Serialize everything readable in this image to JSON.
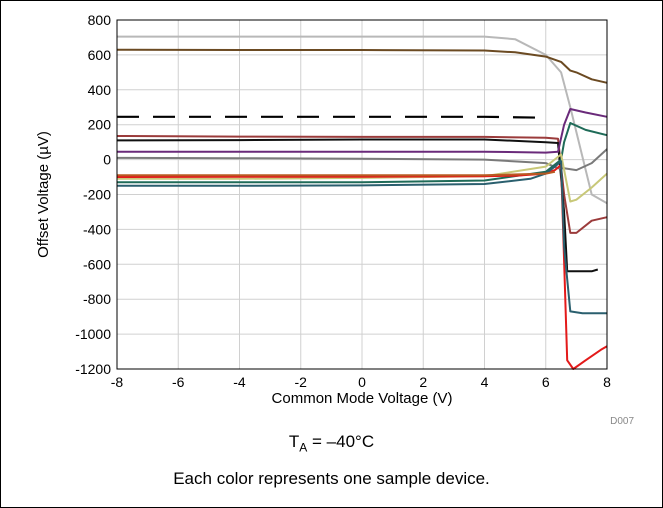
{
  "chart_data": {
    "type": "line",
    "title": "",
    "xlabel": "Common Mode Voltage (V)",
    "ylabel": "Offset Voltage (µV)",
    "xlim": [
      -8,
      8
    ],
    "ylim": [
      -1200,
      800
    ],
    "x_ticks": [
      "-8",
      "-6",
      "-4",
      "-2",
      "0",
      "2",
      "4",
      "6",
      "8"
    ],
    "y_ticks": [
      "800",
      "600",
      "400",
      "200",
      "0",
      "-200",
      "-400",
      "-600",
      "-800",
      "-1000",
      "-1200"
    ],
    "grid": true,
    "figure_id": "D007",
    "series": [
      {
        "color": "#b8b8b8",
        "style": "solid",
        "points": [
          [
            -8,
            705
          ],
          [
            -4,
            705
          ],
          [
            0,
            705
          ],
          [
            4,
            705
          ],
          [
            5,
            690
          ],
          [
            6,
            600
          ],
          [
            6.5,
            500
          ],
          [
            6.8,
            300
          ],
          [
            7.5,
            -200
          ],
          [
            8,
            -250
          ]
        ]
      },
      {
        "color": "#6b4a22",
        "style": "solid",
        "points": [
          [
            -8,
            630
          ],
          [
            -4,
            628
          ],
          [
            0,
            628
          ],
          [
            4,
            625
          ],
          [
            5,
            615
          ],
          [
            6,
            590
          ],
          [
            6.5,
            560
          ],
          [
            6.8,
            510
          ],
          [
            7,
            500
          ],
          [
            7.5,
            460
          ],
          [
            8,
            440
          ]
        ]
      },
      {
        "color": "#000000",
        "style": "dashed",
        "points": [
          [
            -8,
            245
          ],
          [
            -4,
            245
          ],
          [
            0,
            245
          ],
          [
            4,
            245
          ],
          [
            6,
            240
          ]
        ]
      },
      {
        "color": "#9b3b3b",
        "style": "solid",
        "points": [
          [
            -8,
            135
          ],
          [
            -4,
            132
          ],
          [
            0,
            130
          ],
          [
            4,
            130
          ],
          [
            6,
            125
          ],
          [
            6.4,
            120
          ],
          [
            6.6,
            -200
          ],
          [
            6.8,
            -420
          ],
          [
            7,
            -420
          ],
          [
            7.5,
            -350
          ],
          [
            8,
            -330
          ]
        ]
      },
      {
        "color": "#101010",
        "style": "solid",
        "points": [
          [
            -8,
            110
          ],
          [
            -4,
            112
          ],
          [
            0,
            115
          ],
          [
            4,
            115
          ],
          [
            6,
            100
          ],
          [
            6.4,
            95
          ],
          [
            6.6,
            -300
          ],
          [
            6.7,
            -640
          ],
          [
            7,
            -640
          ],
          [
            7.5,
            -640
          ],
          [
            7.7,
            -630
          ]
        ]
      },
      {
        "color": "#6a2a7a",
        "style": "solid",
        "points": [
          [
            -8,
            45
          ],
          [
            -4,
            45
          ],
          [
            0,
            45
          ],
          [
            4,
            45
          ],
          [
            6,
            40
          ],
          [
            6.4,
            45
          ],
          [
            6.6,
            200
          ],
          [
            6.8,
            290
          ],
          [
            7.3,
            270
          ],
          [
            8,
            245
          ]
        ]
      },
      {
        "color": "#7a7a7a",
        "style": "solid",
        "points": [
          [
            -8,
            10
          ],
          [
            -4,
            8
          ],
          [
            0,
            5
          ],
          [
            4,
            0
          ],
          [
            6,
            -20
          ],
          [
            6.4,
            -50
          ],
          [
            6.6,
            -50
          ],
          [
            7,
            -60
          ],
          [
            7.5,
            -20
          ],
          [
            8,
            60
          ]
        ]
      },
      {
        "color": "#1f6b58",
        "style": "solid",
        "points": [
          [
            -8,
            -130
          ],
          [
            -4,
            -130
          ],
          [
            0,
            -130
          ],
          [
            4,
            -120
          ],
          [
            6,
            -70
          ],
          [
            6.5,
            0
          ],
          [
            6.6,
            100
          ],
          [
            6.8,
            210
          ],
          [
            7.3,
            170
          ],
          [
            8,
            140
          ]
        ]
      },
      {
        "color": "#c8c878",
        "style": "solid",
        "points": [
          [
            -8,
            -110
          ],
          [
            -4,
            -110
          ],
          [
            0,
            -105
          ],
          [
            4,
            -95
          ],
          [
            6,
            -40
          ],
          [
            6.5,
            30
          ],
          [
            6.8,
            -240
          ],
          [
            7,
            -230
          ],
          [
            7.5,
            -160
          ],
          [
            8,
            -80
          ]
        ]
      },
      {
        "color": "#e31a1a",
        "style": "solid",
        "points": [
          [
            -8,
            -100
          ],
          [
            -4,
            -98
          ],
          [
            0,
            -98
          ],
          [
            4,
            -95
          ],
          [
            5,
            -92
          ],
          [
            6,
            -80
          ],
          [
            6.3,
            -60
          ],
          [
            6.5,
            -30
          ],
          [
            6.7,
            -1150
          ],
          [
            6.9,
            -1200
          ],
          [
            7.3,
            -1150
          ],
          [
            7.8,
            -1090
          ],
          [
            8,
            -1070
          ]
        ]
      },
      {
        "color": "#2a5f6e",
        "style": "solid",
        "points": [
          [
            -8,
            -150
          ],
          [
            -4,
            -150
          ],
          [
            0,
            -148
          ],
          [
            4,
            -140
          ],
          [
            5.5,
            -110
          ],
          [
            6,
            -80
          ],
          [
            6.3,
            -40
          ],
          [
            6.5,
            -10
          ],
          [
            6.6,
            -500
          ],
          [
            6.8,
            -870
          ],
          [
            7.2,
            -880
          ],
          [
            8,
            -880
          ]
        ]
      },
      {
        "color": "#b85a22",
        "style": "solid",
        "points": [
          [
            -8,
            -90
          ],
          [
            -4,
            -90
          ],
          [
            0,
            -90
          ],
          [
            4,
            -90
          ],
          [
            6,
            -80
          ],
          [
            6.3,
            -70
          ]
        ]
      }
    ]
  },
  "caption": {
    "condition_symbol": "T",
    "condition_subscript": "A",
    "condition_value": " = –40°C",
    "note": "Each color represents one sample device."
  }
}
